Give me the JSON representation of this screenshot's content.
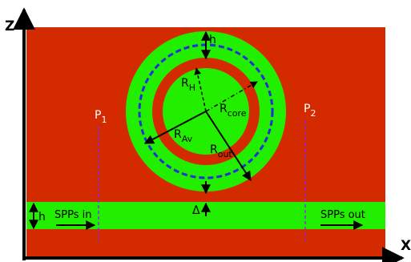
{
  "axes": {
    "x_label": "X",
    "z_label": "Z"
  },
  "labels": {
    "h_top": "h",
    "r_h_main": "R",
    "r_h_sub": "H",
    "r_core_main": "R",
    "r_core_sub": "core",
    "r_av_main": "R",
    "r_av_sub": "Av",
    "r_out_main": "R",
    "r_out_sub": "out",
    "p1_main": "P",
    "p1_sub": "1",
    "p2_main": "P",
    "p2_sub": "2",
    "delta": "Δ",
    "h_side": "h",
    "spps_in": "SPPs in",
    "spps_out": "SPPs out"
  },
  "colors": {
    "background": "#d42a00",
    "metal": "#22ee00",
    "average_circle": "#1f2fd6",
    "probe_line": "#8a2be2",
    "arrow": "#000000"
  }
}
